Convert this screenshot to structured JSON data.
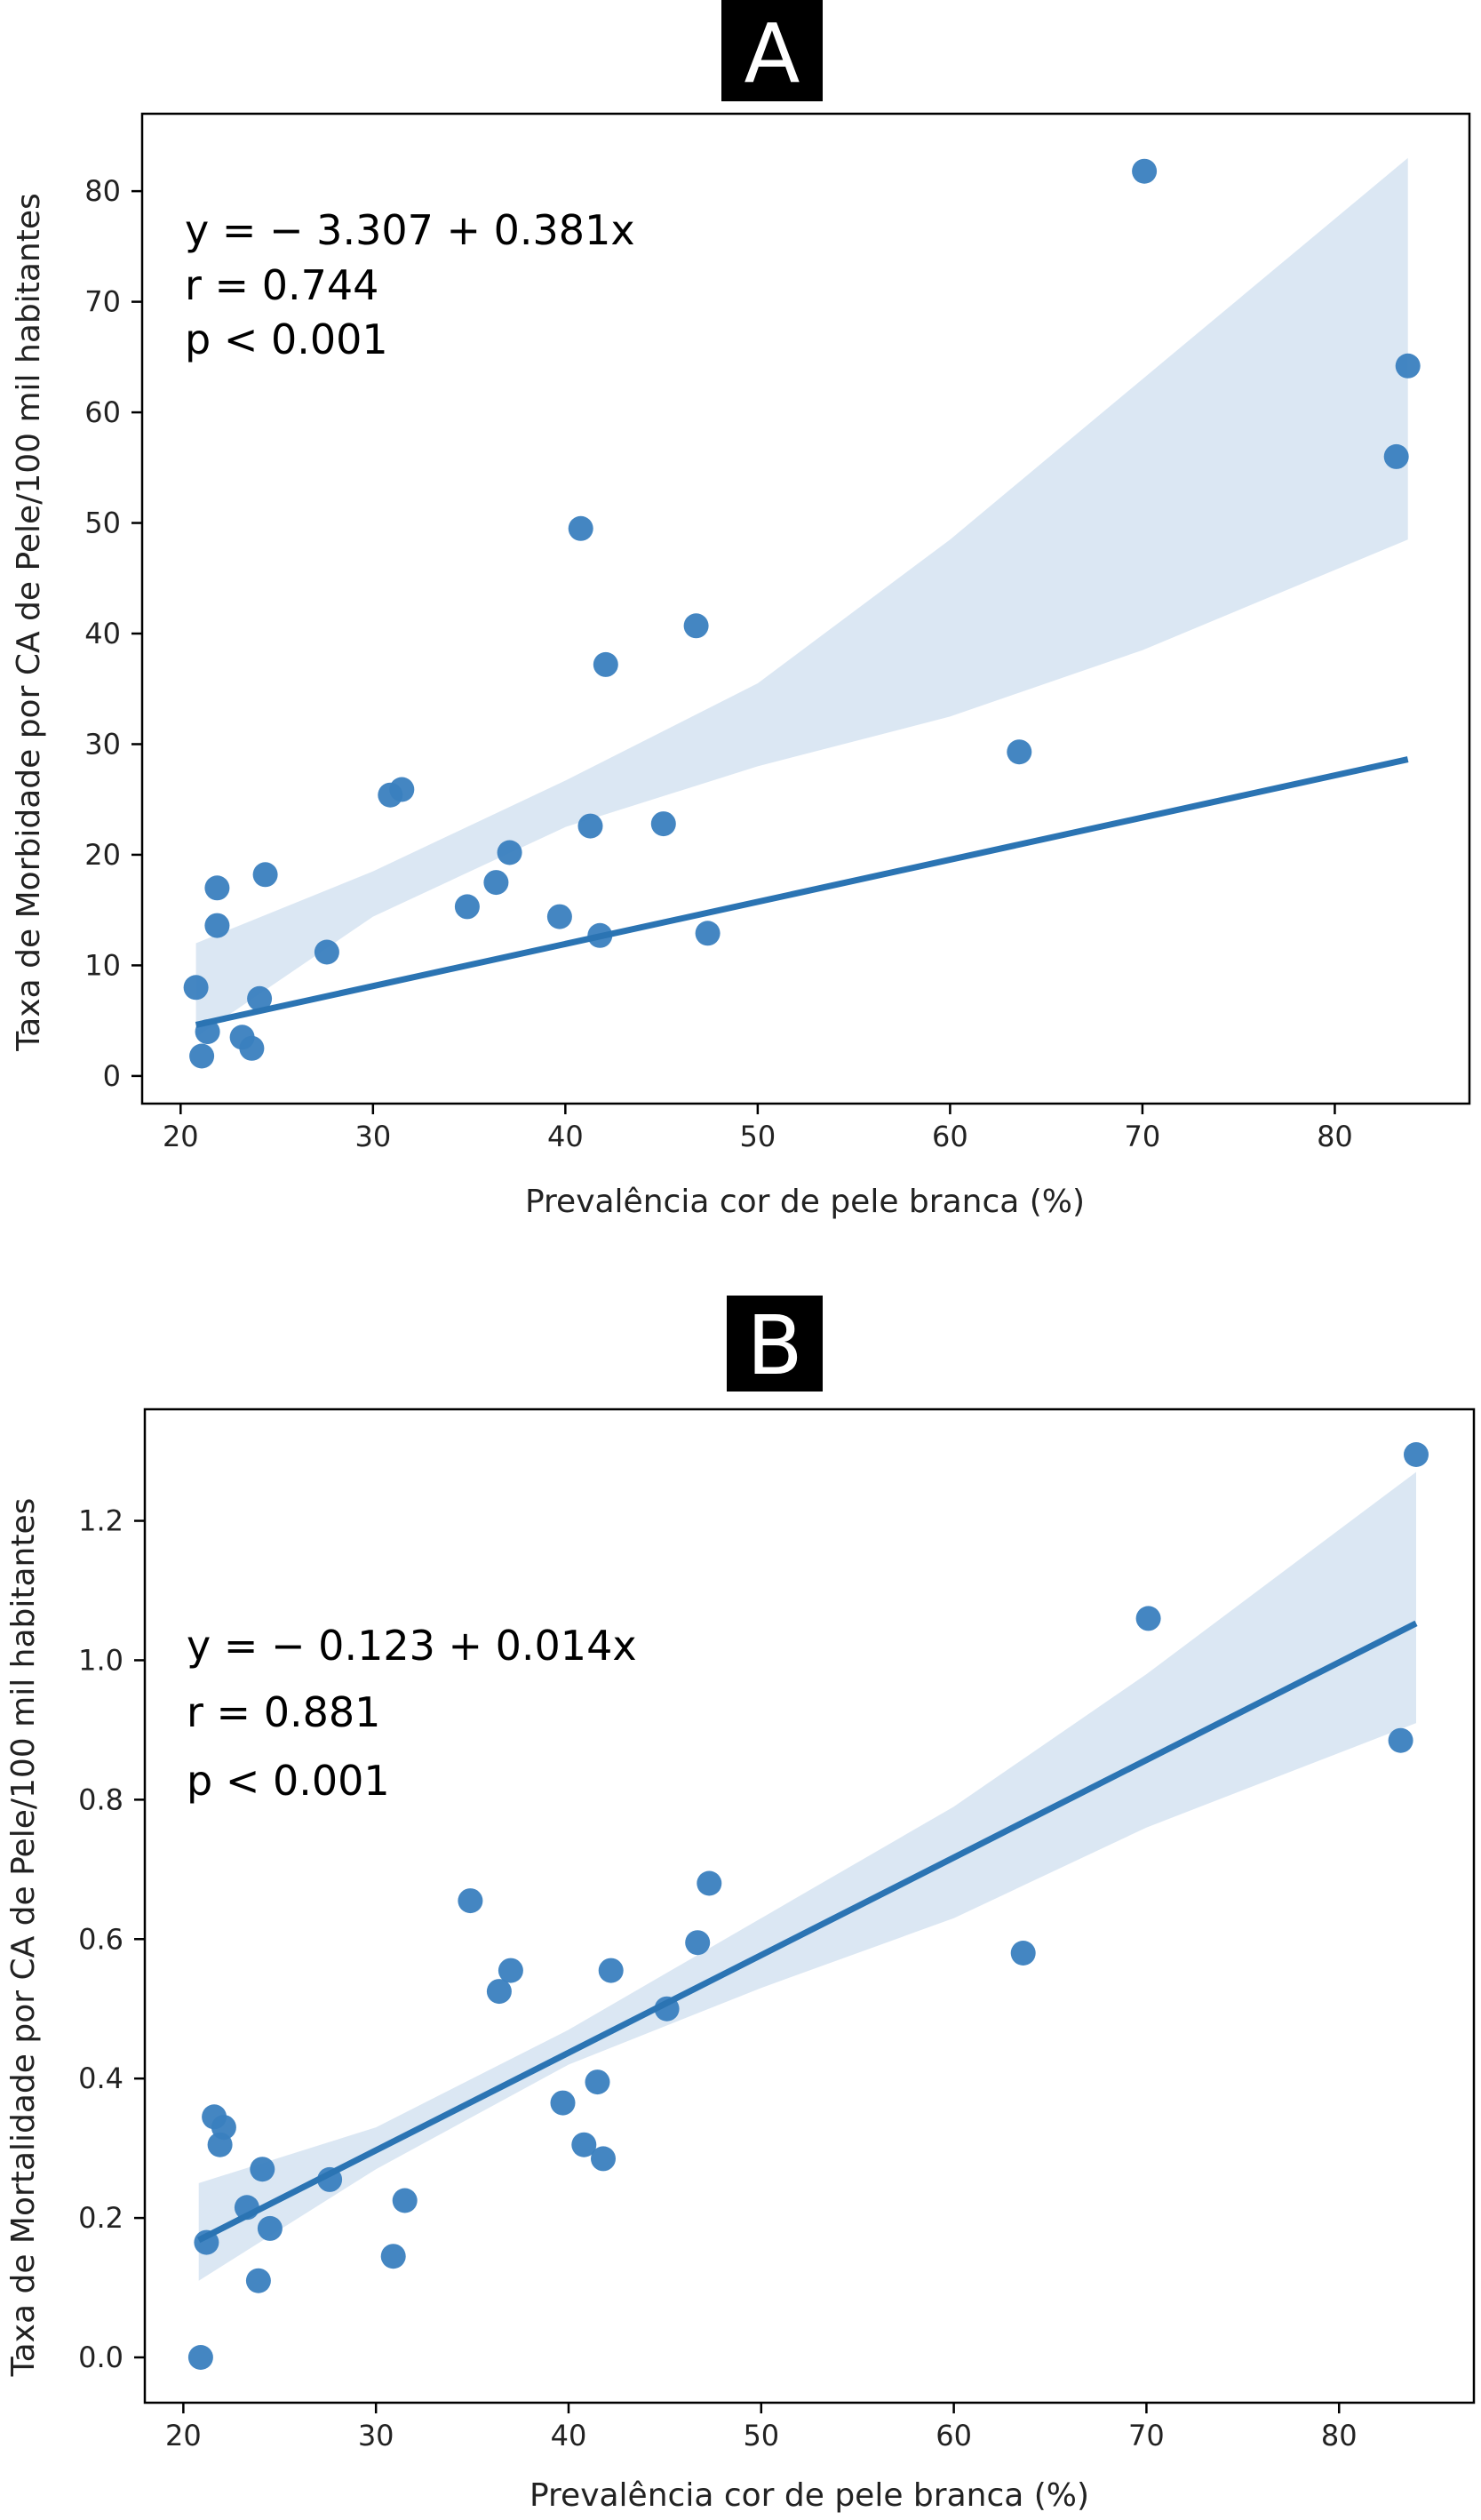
{
  "colors": {
    "accent": "#2b74b3",
    "point": "#3a7fbf",
    "band": "#dbe7f3",
    "axes": "#000000",
    "label_box": "#000000",
    "label_text": "#ffffff"
  },
  "chart_data": [
    {
      "type": "scatter",
      "panel_label": "A",
      "xlabel": "Prevalência cor de pele branca (%)",
      "ylabel": "Taxa de Morbidade por CA de Pele/100 mil habitantes",
      "xlim": [
        18,
        87
      ],
      "ylim": [
        -2.5,
        87
      ],
      "xticks": [
        20,
        30,
        40,
        50,
        60,
        70,
        80
      ],
      "yticks": [
        0,
        10,
        20,
        30,
        40,
        50,
        60,
        70,
        80
      ],
      "grid": false,
      "annotation": {
        "equation": "y = − 3.307 + 0.381x",
        "r": "r = 0.744",
        "p": "p < 0.001"
      },
      "fit": {
        "intercept": -3.307,
        "slope": 0.381,
        "x_range": [
          20.8,
          83.8
        ]
      },
      "ci_band": {
        "x": [
          20.8,
          30,
          40,
          50,
          60,
          70,
          83.8
        ],
        "lower": [
          3.5,
          14.4,
          22.5,
          28.0,
          32.5,
          38.5,
          48.5
        ],
        "upper": [
          12.0,
          18.5,
          26.7,
          35.5,
          48.5,
          63.0,
          83.0
        ]
      },
      "points": [
        {
          "x": 20.8,
          "y": 8.0
        },
        {
          "x": 21.1,
          "y": 1.8
        },
        {
          "x": 21.4,
          "y": 4.0
        },
        {
          "x": 21.9,
          "y": 13.6
        },
        {
          "x": 21.9,
          "y": 17.0
        },
        {
          "x": 23.2,
          "y": 3.5
        },
        {
          "x": 23.7,
          "y": 2.5
        },
        {
          "x": 24.1,
          "y": 7.0
        },
        {
          "x": 24.4,
          "y": 18.2
        },
        {
          "x": 27.6,
          "y": 11.2
        },
        {
          "x": 30.9,
          "y": 25.4
        },
        {
          "x": 31.5,
          "y": 25.9
        },
        {
          "x": 34.9,
          "y": 15.3
        },
        {
          "x": 36.4,
          "y": 17.5
        },
        {
          "x": 37.1,
          "y": 20.2
        },
        {
          "x": 39.7,
          "y": 14.4
        },
        {
          "x": 40.8,
          "y": 49.5
        },
        {
          "x": 41.3,
          "y": 22.6
        },
        {
          "x": 41.8,
          "y": 12.7
        },
        {
          "x": 42.1,
          "y": 37.2
        },
        {
          "x": 45.1,
          "y": 22.8
        },
        {
          "x": 46.8,
          "y": 40.7
        },
        {
          "x": 47.4,
          "y": 12.9
        },
        {
          "x": 63.6,
          "y": 29.3
        },
        {
          "x": 70.1,
          "y": 81.8
        },
        {
          "x": 83.2,
          "y": 56.0
        },
        {
          "x": 83.8,
          "y": 64.2
        }
      ]
    },
    {
      "type": "scatter",
      "panel_label": "B",
      "xlabel": "Prevalência cor de pele branca (%)",
      "ylabel": "Taxa de Mortalidade por CA de Pele/100 mil habitantes",
      "xlim": [
        18,
        87
      ],
      "ylim": [
        -0.065,
        1.36
      ],
      "xticks": [
        20,
        30,
        40,
        50,
        60,
        70,
        80
      ],
      "yticks": [
        0.0,
        0.2,
        0.4,
        0.6,
        0.8,
        1.0,
        1.2
      ],
      "grid": false,
      "annotation": {
        "equation": "y = − 0.123 + 0.014x",
        "r": "r = 0.881",
        "p": "p < 0.001"
      },
      "fit": {
        "intercept": -0.123,
        "slope": 0.014,
        "x_range": [
          20.8,
          84
        ]
      },
      "ci_band": {
        "x": [
          20.8,
          30,
          40,
          50,
          60,
          70,
          84
        ],
        "lower": [
          0.11,
          0.27,
          0.42,
          0.53,
          0.63,
          0.76,
          0.91
        ],
        "upper": [
          0.25,
          0.33,
          0.47,
          0.63,
          0.79,
          0.98,
          1.27
        ]
      },
      "points": [
        {
          "x": 20.9,
          "y": 0.0
        },
        {
          "x": 21.2,
          "y": 0.165
        },
        {
          "x": 21.6,
          "y": 0.345
        },
        {
          "x": 21.9,
          "y": 0.305
        },
        {
          "x": 22.1,
          "y": 0.33
        },
        {
          "x": 23.3,
          "y": 0.215
        },
        {
          "x": 23.9,
          "y": 0.11
        },
        {
          "x": 24.1,
          "y": 0.27
        },
        {
          "x": 24.5,
          "y": 0.185
        },
        {
          "x": 27.6,
          "y": 0.255
        },
        {
          "x": 30.9,
          "y": 0.145
        },
        {
          "x": 31.5,
          "y": 0.225
        },
        {
          "x": 34.9,
          "y": 0.655
        },
        {
          "x": 36.4,
          "y": 0.525
        },
        {
          "x": 37.0,
          "y": 0.555
        },
        {
          "x": 39.7,
          "y": 0.365
        },
        {
          "x": 40.8,
          "y": 0.305
        },
        {
          "x": 41.5,
          "y": 0.395
        },
        {
          "x": 41.8,
          "y": 0.285
        },
        {
          "x": 42.2,
          "y": 0.555
        },
        {
          "x": 45.1,
          "y": 0.5
        },
        {
          "x": 46.7,
          "y": 0.595
        },
        {
          "x": 47.3,
          "y": 0.68
        },
        {
          "x": 63.6,
          "y": 0.58
        },
        {
          "x": 70.1,
          "y": 1.06
        },
        {
          "x": 83.2,
          "y": 0.885
        },
        {
          "x": 84.0,
          "y": 1.295
        }
      ]
    }
  ]
}
